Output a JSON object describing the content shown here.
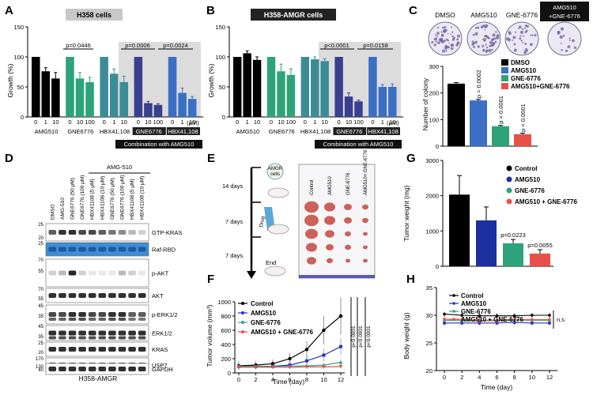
{
  "panels": {
    "A": "A",
    "B": "B",
    "C": "C",
    "D": "D",
    "E": "E",
    "F": "F",
    "G": "G",
    "H": "H"
  },
  "colors": {
    "black": "#000000",
    "green": "#2ea37a",
    "teal": "#3c8c96",
    "navy": "#3a3f8f",
    "blue": "#3b6fc4",
    "red": "#e8504a",
    "shade": "#dcdcdc",
    "dish": "#6a5fa0"
  },
  "panel_A": {
    "title": "H358 cells",
    "ylabel": "Growth (%)",
    "unit": "(μM)",
    "yticks": [
      "0",
      "50",
      "100",
      "150"
    ],
    "groups": [
      "AMG510",
      "GNE6776",
      "HBX41,108",
      "GNE6776",
      "HBX41,108"
    ],
    "combo_label": "Combination with AMG510",
    "doses": [
      [
        "0",
        "1",
        "10"
      ],
      [
        "0",
        "10",
        "100"
      ],
      [
        "0",
        "1",
        "10"
      ],
      [
        "0",
        "10",
        "100"
      ],
      [
        "0",
        "1",
        "10"
      ]
    ],
    "pvalues": [
      "p=0.0446",
      "p=0.0006",
      "p=0.0024"
    ]
  },
  "panel_B": {
    "title": "H358-AMGR cells",
    "ylabel": "Growth (%)",
    "unit": "(μM)",
    "yticks": [
      "0",
      "50",
      "100",
      "150"
    ],
    "groups": [
      "AMG510",
      "GNE6776",
      "HBX41,108",
      "GNE6776",
      "HBX41,108"
    ],
    "combo_label": "Combination with AMG510",
    "doses": [
      [
        "0",
        "1",
        "10"
      ],
      [
        "0",
        "10",
        "100"
      ],
      [
        "0",
        "1",
        "10"
      ],
      [
        "0",
        "10",
        "100"
      ],
      [
        "0",
        "1",
        "10"
      ]
    ],
    "pvalues": [
      "p<0.0001",
      "p=0.0158"
    ]
  },
  "panel_C": {
    "dish_labels": [
      "DMSO",
      "AMG510",
      "GNE-6776"
    ],
    "combo_dish_label": [
      "AMG510",
      "+GNE-6776"
    ],
    "ylabel": "Number of colony",
    "yticks": [
      "0",
      "100",
      "200",
      "300"
    ],
    "legend": [
      "DMSO",
      "AMG510",
      "GNE-6776",
      "AMG510+GNE-6776"
    ],
    "pvalues": [
      "p = 0.0002",
      "p < 0.0001",
      "p < 0.0001"
    ]
  },
  "panel_D": {
    "treatment_header": "AMG-510",
    "lanes": [
      "DMSO",
      "AMG-510",
      "GNE6776 (50 μM)",
      "GNE6776 (100 μM)",
      "HBX41108 (5 μM)",
      "HBX41108 (10 μM)",
      "GNE6776 (50 μM)",
      "GNE6776 (100 μM)",
      "HBX41108 (5 μM)",
      "HBX41108 (10 μM)"
    ],
    "bands": [
      "GTP-KRAS",
      "Raf-RBD",
      "p-AKT",
      "AKT",
      "p-ERK1/2",
      "ERK1/2",
      "KRAS",
      "USP7",
      "GAPDH"
    ],
    "markers": [
      "25",
      "20",
      "25",
      "70",
      "55",
      "70",
      "55",
      "45",
      "35",
      "45",
      "35",
      "25",
      "20",
      "170",
      "130",
      "40"
    ],
    "caption": "H358-AMGR"
  },
  "panel_E": {
    "timeline": [
      "14 days",
      "7 days",
      "7 days"
    ],
    "cells_label": [
      "AMGR",
      "cells"
    ],
    "drug_label": "Drug",
    "end_label": "End",
    "groups": [
      "Control",
      "AMG510",
      "GNE-6776",
      "AMG510+ GNE-6776"
    ]
  },
  "panel_F": {
    "ylabel": "Tumor volume (mm³)",
    "xlabel": "Time (day)",
    "yticks": [
      "0",
      "200",
      "400",
      "600",
      "800",
      "1000"
    ],
    "xticks": [
      "0",
      "2",
      "4",
      "6",
      "8",
      "10",
      "12"
    ],
    "legend": [
      "Control",
      "AMG510",
      "GNE-6776",
      "AMG510 + GNE-6776"
    ],
    "pvalues": [
      "p<0.0001",
      "p<0.0001",
      "p<0.0001"
    ]
  },
  "panel_G": {
    "ylabel": "Tumor weight (mg)",
    "yticks": [
      "0",
      "1000",
      "2000",
      "3000"
    ],
    "legend": [
      "Control",
      "AMG510",
      "GNE-6776",
      "AMG510 + GNE-6776"
    ],
    "pvalues": [
      "p=0.0223",
      "p=0.0055"
    ]
  },
  "panel_H": {
    "ylabel": "Body weight (g)",
    "xlabel": "Time (day)",
    "yticks": [
      "20",
      "25",
      "30",
      "35"
    ],
    "xticks": [
      "0",
      "2",
      "4",
      "6",
      "8",
      "10",
      "12"
    ],
    "legend": [
      "Control",
      "AMG510",
      "GNE-6776",
      "AMG510 + GNE-6776"
    ],
    "ns": "n.s"
  },
  "chart_data": [
    {
      "type": "bar",
      "panel": "A",
      "categories": [
        "AMG510 0",
        "AMG510 1",
        "AMG510 10",
        "GNE6776 0",
        "GNE6776 10",
        "GNE6776 100",
        "HBX41,108 0",
        "HBX41,108 1",
        "HBX41,108 10",
        "GNE6776 combo 0",
        "GNE6776 combo 10",
        "GNE6776 combo 100",
        "HBX41,108 combo 0",
        "HBX41,108 combo 1",
        "HBX41,108 combo 10"
      ],
      "values": [
        100,
        76,
        64,
        100,
        64,
        58,
        100,
        72,
        58,
        100,
        23,
        20,
        100,
        40,
        30
      ],
      "errors": [
        0,
        6,
        10,
        0,
        10,
        8,
        0,
        8,
        10,
        0,
        3,
        2,
        0,
        8,
        4
      ],
      "ylabel": "Growth (%)",
      "ylim": [
        0,
        150
      ]
    },
    {
      "type": "bar",
      "panel": "B",
      "categories": [
        "AMG510 0",
        "AMG510 1",
        "AMG510 10",
        "GNE6776 0",
        "GNE6776 10",
        "GNE6776 100",
        "HBX41,108 0",
        "HBX41,108 1",
        "HBX41,108 10",
        "GNE6776 combo 0",
        "GNE6776 combo 10",
        "GNE6776 combo 100",
        "HBX41,108 combo 0",
        "HBX41,108 combo 1",
        "HBX41,108 combo 10"
      ],
      "values": [
        100,
        106,
        95,
        100,
        76,
        70,
        100,
        96,
        93,
        100,
        34,
        26,
        100,
        50,
        50
      ],
      "errors": [
        0,
        4,
        5,
        0,
        12,
        10,
        0,
        4,
        4,
        0,
        6,
        2,
        0,
        4,
        5
      ],
      "ylabel": "Growth (%)",
      "ylim": [
        0,
        150
      ]
    },
    {
      "type": "bar",
      "panel": "C",
      "categories": [
        "DMSO",
        "AMG510",
        "GNE-6776",
        "AMG510+GNE-6776"
      ],
      "values": [
        235,
        172,
        75,
        45
      ],
      "errors": [
        4,
        4,
        3,
        4
      ],
      "ylabel": "Number of colony",
      "ylim": [
        0,
        300
      ]
    },
    {
      "type": "line",
      "panel": "F",
      "x": [
        0,
        2,
        4,
        6,
        8,
        10,
        12
      ],
      "series": [
        {
          "name": "Control",
          "values": [
            100,
            110,
            130,
            200,
            330,
            600,
            800
          ],
          "errors": [
            60,
            60,
            60,
            80,
            120,
            200,
            260
          ]
        },
        {
          "name": "AMG510",
          "values": [
            90,
            90,
            95,
            110,
            170,
            250,
            370
          ],
          "errors": [
            40,
            40,
            40,
            50,
            70,
            90,
            120
          ]
        },
        {
          "name": "GNE-6776",
          "values": [
            90,
            90,
            90,
            95,
            100,
            110,
            150
          ],
          "errors": [
            30,
            30,
            30,
            30,
            40,
            40,
            50
          ]
        },
        {
          "name": "AMG510 + GNE-6776",
          "values": [
            80,
            80,
            80,
            80,
            85,
            85,
            90
          ],
          "errors": [
            20,
            20,
            20,
            20,
            20,
            20,
            25
          ]
        }
      ],
      "xlabel": "Time (day)",
      "ylabel": "Tumor volume (mm³)",
      "ylim": [
        0,
        1000
      ]
    },
    {
      "type": "bar",
      "panel": "G",
      "categories": [
        "Control",
        "AMG510",
        "GNE-6776",
        "AMG510 + GNE-6776"
      ],
      "values": [
        2030,
        1300,
        650,
        360
      ],
      "errors": [
        540,
        380,
        110,
        110
      ],
      "ylabel": "Tumor weight (mg)",
      "ylim": [
        0,
        3000
      ]
    },
    {
      "type": "line",
      "panel": "H",
      "x": [
        0,
        2,
        4,
        6,
        8,
        10,
        12
      ],
      "series": [
        {
          "name": "Control",
          "values": [
            30.2,
            30.0,
            29.9,
            29.9,
            29.9,
            30.0,
            30.0
          ]
        },
        {
          "name": "AMG510",
          "values": [
            28.6,
            28.6,
            28.6,
            28.6,
            28.7,
            28.6,
            28.6
          ]
        },
        {
          "name": "GNE-6776",
          "values": [
            29.1,
            29.0,
            29.0,
            29.0,
            29.1,
            29.1,
            29.1
          ]
        },
        {
          "name": "AMG510 + GNE-6776",
          "values": [
            29.3,
            29.2,
            29.1,
            29.1,
            29.2,
            29.2,
            29.2
          ]
        }
      ],
      "xlabel": "Time (day)",
      "ylabel": "Body weight (g)",
      "ylim": [
        20,
        35
      ]
    }
  ]
}
